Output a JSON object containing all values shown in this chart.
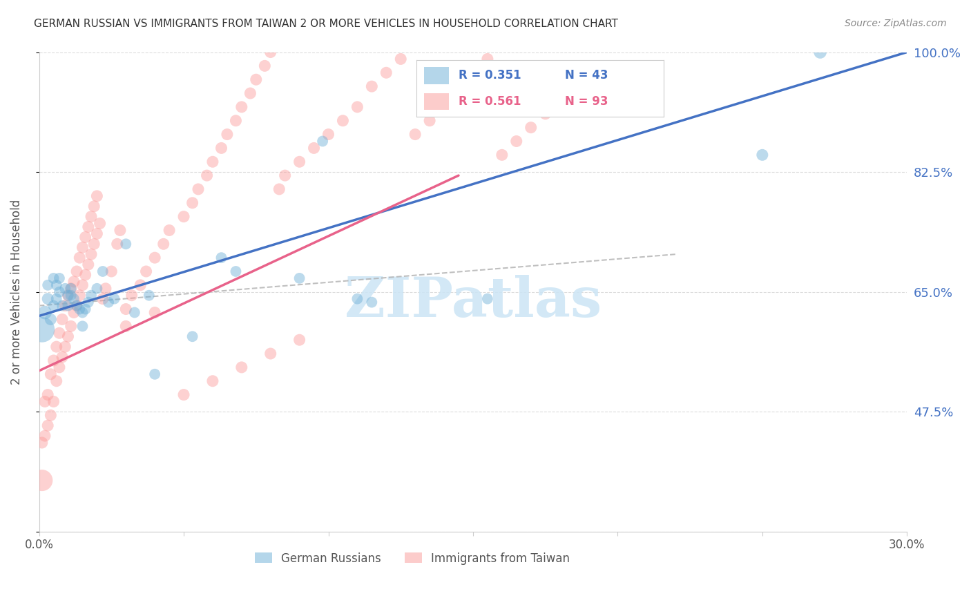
{
  "title": "GERMAN RUSSIAN VS IMMIGRANTS FROM TAIWAN 2 OR MORE VEHICLES IN HOUSEHOLD CORRELATION CHART",
  "source": "Source: ZipAtlas.com",
  "ylabel": "2 or more Vehicles in Household",
  "x_min": 0.0,
  "x_max": 0.3,
  "y_min": 0.3,
  "y_max": 1.0,
  "blue_color": "#6baed6",
  "pink_color": "#fb9a99",
  "blue_line_color": "#4472c4",
  "pink_line_color": "#e8628a",
  "gray_line_color": "#b0b0b0",
  "right_tick_color": "#4472c4",
  "grid_color": "#cccccc",
  "title_color": "#333333",
  "axis_label_color": "#555555",
  "watermark_color": "#cce5f5",
  "blue_R": "0.351",
  "blue_N": "43",
  "pink_R": "0.561",
  "pink_N": "93",
  "y_ticks_right": [
    0.475,
    0.65,
    0.825,
    1.0
  ],
  "y_tick_labels_right": [
    "47.5%",
    "65.0%",
    "82.5%",
    "100.0%"
  ],
  "blue_regression": [
    0.0,
    0.615,
    0.3,
    1.0
  ],
  "pink_regression": [
    0.0,
    0.535,
    0.145,
    0.82
  ],
  "diag_line": [
    0.0,
    0.63,
    0.22,
    0.705
  ],
  "blue_scatter_x": [
    0.001,
    0.002,
    0.003,
    0.003,
    0.004,
    0.005,
    0.005,
    0.006,
    0.006,
    0.007,
    0.007,
    0.008,
    0.009,
    0.01,
    0.01,
    0.011,
    0.011,
    0.012,
    0.013,
    0.014,
    0.015,
    0.015,
    0.016,
    0.017,
    0.018,
    0.02,
    0.022,
    0.024,
    0.026,
    0.03,
    0.033,
    0.038,
    0.04,
    0.053,
    0.063,
    0.068,
    0.09,
    0.098,
    0.11,
    0.115,
    0.155,
    0.25,
    0.27
  ],
  "blue_scatter_y": [
    0.595,
    0.62,
    0.64,
    0.66,
    0.61,
    0.63,
    0.67,
    0.64,
    0.66,
    0.65,
    0.67,
    0.63,
    0.655,
    0.63,
    0.645,
    0.645,
    0.655,
    0.64,
    0.63,
    0.625,
    0.6,
    0.62,
    0.625,
    0.635,
    0.645,
    0.655,
    0.68,
    0.635,
    0.64,
    0.72,
    0.62,
    0.645,
    0.53,
    0.585,
    0.7,
    0.68,
    0.67,
    0.87,
    0.64,
    0.635,
    0.64,
    0.85,
    1.0
  ],
  "blue_scatter_s": [
    700,
    200,
    150,
    130,
    150,
    130,
    130,
    130,
    130,
    130,
    130,
    130,
    130,
    130,
    130,
    130,
    130,
    130,
    130,
    130,
    130,
    130,
    130,
    130,
    130,
    130,
    130,
    130,
    130,
    130,
    130,
    130,
    130,
    130,
    130,
    130,
    130,
    130,
    130,
    130,
    130,
    150,
    180
  ],
  "pink_scatter_x": [
    0.001,
    0.001,
    0.002,
    0.002,
    0.003,
    0.003,
    0.004,
    0.004,
    0.005,
    0.005,
    0.006,
    0.006,
    0.007,
    0.007,
    0.008,
    0.008,
    0.009,
    0.009,
    0.01,
    0.01,
    0.011,
    0.011,
    0.012,
    0.012,
    0.013,
    0.013,
    0.014,
    0.014,
    0.015,
    0.015,
    0.016,
    0.016,
    0.017,
    0.017,
    0.018,
    0.018,
    0.019,
    0.019,
    0.02,
    0.02,
    0.021,
    0.022,
    0.023,
    0.025,
    0.027,
    0.028,
    0.03,
    0.032,
    0.035,
    0.037,
    0.04,
    0.043,
    0.045,
    0.05,
    0.053,
    0.055,
    0.058,
    0.06,
    0.063,
    0.065,
    0.068,
    0.07,
    0.073,
    0.075,
    0.078,
    0.08,
    0.083,
    0.085,
    0.09,
    0.095,
    0.1,
    0.105,
    0.11,
    0.115,
    0.12,
    0.125,
    0.13,
    0.135,
    0.14,
    0.145,
    0.15,
    0.155,
    0.16,
    0.165,
    0.17,
    0.175,
    0.03,
    0.04,
    0.05,
    0.06,
    0.07,
    0.08,
    0.09
  ],
  "pink_scatter_y": [
    0.375,
    0.43,
    0.44,
    0.49,
    0.455,
    0.5,
    0.47,
    0.53,
    0.49,
    0.55,
    0.52,
    0.57,
    0.54,
    0.59,
    0.555,
    0.61,
    0.57,
    0.63,
    0.585,
    0.645,
    0.6,
    0.655,
    0.62,
    0.665,
    0.63,
    0.68,
    0.645,
    0.7,
    0.66,
    0.715,
    0.675,
    0.73,
    0.69,
    0.745,
    0.705,
    0.76,
    0.72,
    0.775,
    0.735,
    0.79,
    0.75,
    0.64,
    0.655,
    0.68,
    0.72,
    0.74,
    0.625,
    0.645,
    0.66,
    0.68,
    0.7,
    0.72,
    0.74,
    0.76,
    0.78,
    0.8,
    0.82,
    0.84,
    0.86,
    0.88,
    0.9,
    0.92,
    0.94,
    0.96,
    0.98,
    1.0,
    0.8,
    0.82,
    0.84,
    0.86,
    0.88,
    0.9,
    0.92,
    0.95,
    0.97,
    0.99,
    0.88,
    0.9,
    0.92,
    0.95,
    0.97,
    0.99,
    0.85,
    0.87,
    0.89,
    0.91,
    0.6,
    0.62,
    0.5,
    0.52,
    0.54,
    0.56,
    0.58
  ],
  "pink_scatter_s": [
    500,
    150,
    150,
    150,
    150,
    150,
    150,
    150,
    150,
    150,
    150,
    150,
    150,
    150,
    150,
    150,
    150,
    150,
    150,
    150,
    150,
    150,
    150,
    150,
    150,
    150,
    150,
    150,
    150,
    150,
    150,
    150,
    150,
    150,
    150,
    150,
    150,
    150,
    150,
    150,
    150,
    150,
    150,
    150,
    150,
    150,
    150,
    150,
    150,
    150,
    150,
    150,
    150,
    150,
    150,
    150,
    150,
    150,
    150,
    150,
    150,
    150,
    150,
    150,
    150,
    150,
    150,
    150,
    150,
    150,
    150,
    150,
    150,
    150,
    150,
    150,
    150,
    150,
    150,
    150,
    150,
    150,
    150,
    150,
    150,
    150,
    150,
    150,
    150,
    150,
    150,
    150,
    150
  ]
}
